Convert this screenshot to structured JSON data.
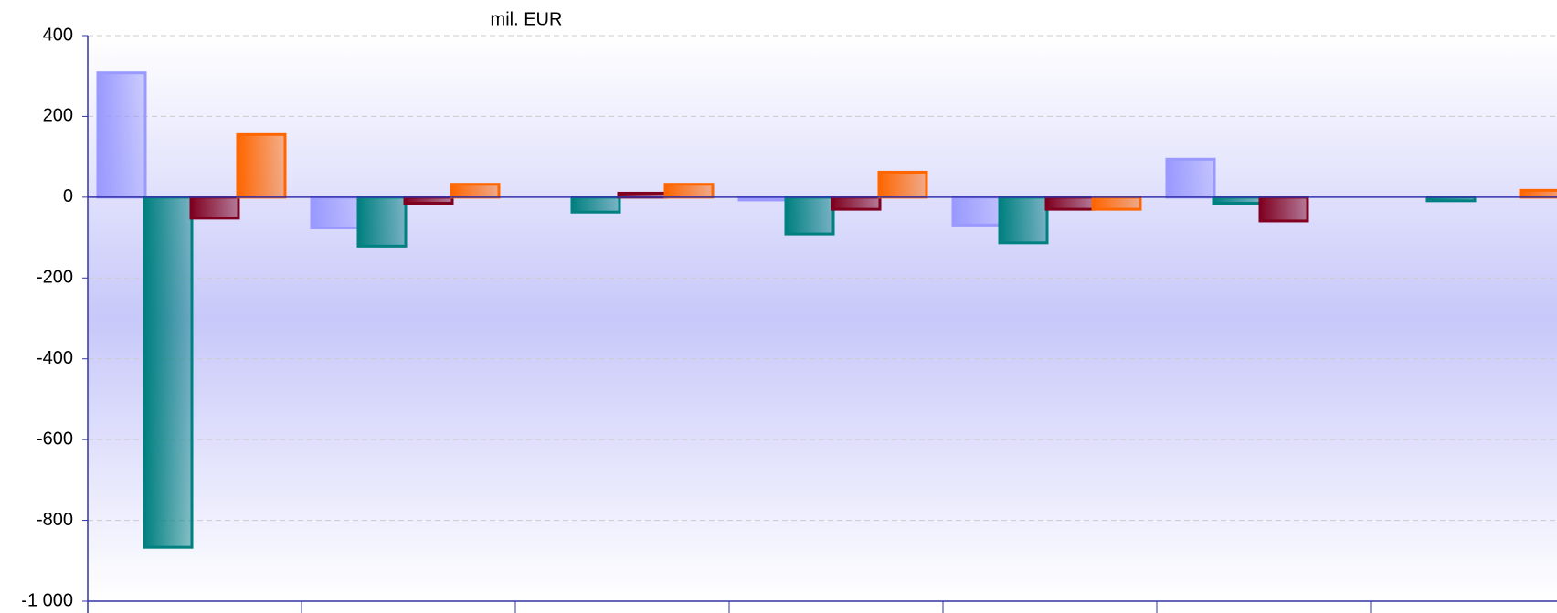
{
  "chart_data": {
    "type": "bar",
    "title": "mil. EUR",
    "categories": [
      null,
      null,
      null,
      null,
      null,
      null,
      null
    ],
    "series": [
      {
        "color": "#9999ff",
        "values": [
          308,
          -76,
          null,
          -7,
          -69,
          94,
          null
        ]
      },
      {
        "color": "#008080",
        "values": [
          -867,
          -121,
          -37,
          -91,
          -113,
          -15,
          -9
        ]
      },
      {
        "color": "#800020",
        "values": [
          -52,
          -15,
          10,
          -30,
          -30,
          -59,
          null
        ]
      },
      {
        "color": "#ff6600",
        "values": [
          155,
          32,
          32,
          62,
          -30,
          null,
          17
        ]
      }
    ],
    "ylim": [
      -1000,
      400
    ],
    "yticks": [
      {
        "value": -1000,
        "label": "-1 000"
      },
      -800,
      -600,
      -400,
      -200,
      0,
      200,
      400
    ],
    "grid": true
  }
}
